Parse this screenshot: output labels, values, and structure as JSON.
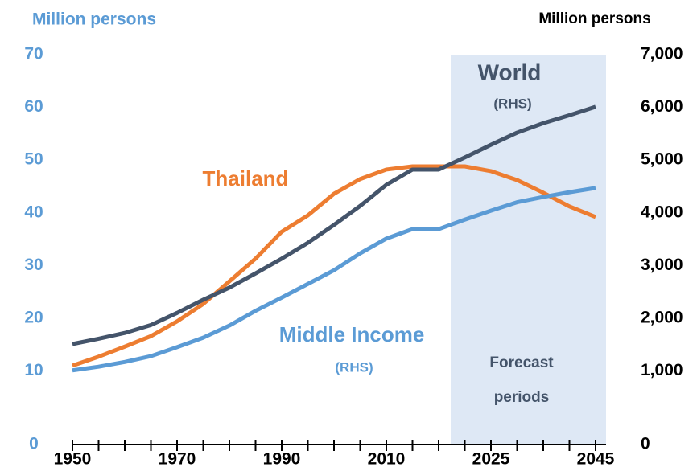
{
  "chart_data": {
    "type": "line",
    "y_label": "Million persons",
    "y2_label": "Million persons",
    "categories": [
      "1950",
      null,
      null,
      null,
      "1970",
      null,
      null,
      null,
      "1990",
      null,
      null,
      null,
      "2010",
      null,
      null,
      null,
      "2025",
      null,
      null,
      null,
      "2045"
    ],
    "series": [
      {
        "name": "Thailand",
        "color": "#ED7D31",
        "values": [
          11,
          12.7,
          14.6,
          16.6,
          19.4,
          22.7,
          27,
          31.3,
          36.4,
          39.5,
          43.6,
          46.4,
          48.2,
          48.8,
          48.8,
          48.8,
          47.9,
          46.2,
          43.8,
          41.2,
          39.2
        ]
      },
      {
        "name": "World",
        "sub": "(RHS)",
        "color": "#44546A",
        "axis": "y2",
        "values": [
          1510,
          1610,
          1720,
          1870,
          2100,
          2350,
          2580,
          2850,
          3130,
          3430,
          3770,
          4130,
          4530,
          4820,
          4820,
          5050,
          5290,
          5520,
          5700,
          5850,
          6010
        ]
      },
      {
        "name": "Middle Income",
        "sub": "(RHS)",
        "color": "#5B9BD5",
        "axis": "y2",
        "values": [
          1010,
          1080,
          1170,
          1280,
          1450,
          1630,
          1860,
          2140,
          2390,
          2650,
          2910,
          3230,
          3510,
          3690,
          3690,
          3870,
          4040,
          4200,
          4300,
          4390,
          4470
        ]
      }
    ],
    "forecast_label": [
      "Forecast",
      "periods"
    ],
    "ylim": [
      0,
      70
    ],
    "yticks": [
      0,
      10,
      20,
      30,
      40,
      50,
      60,
      70
    ],
    "y2lim": [
      0,
      7000
    ],
    "y2ticks": [
      0,
      {
        "value": 1000,
        "label": "1,000"
      },
      {
        "value": 2000,
        "label": "2,000"
      },
      {
        "value": 3000,
        "label": "3,000"
      },
      {
        "value": 4000,
        "label": "4,000"
      },
      {
        "value": 5000,
        "label": "5,000"
      },
      {
        "value": 6000,
        "label": "6,000"
      },
      {
        "value": 7000,
        "label": "7,000"
      }
    ],
    "grid": false
  }
}
